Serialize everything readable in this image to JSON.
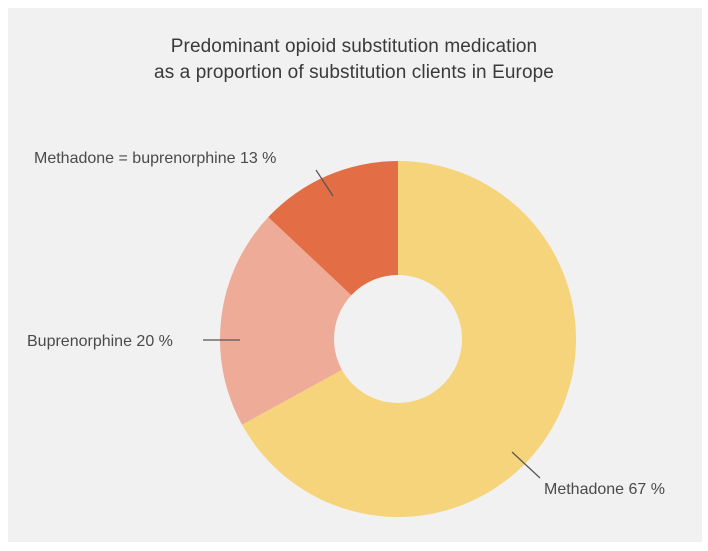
{
  "chart_data": {
    "type": "pie",
    "title": "Predominant opioid substitution medication as a proportion of substitution clients in Europe",
    "title_lines": [
      "Predominant opioid substitution medication",
      "as a proportion of substitution clients in Europe"
    ],
    "slices": [
      {
        "label": "Methadone 67 %",
        "value": 67,
        "color": "#f6d47c"
      },
      {
        "label": "Buprenorphine 20 %",
        "value": 20,
        "color": "#eeab98"
      },
      {
        "label": "Methadone = buprenorphine 13 %",
        "value": 13,
        "color": "#e36d45"
      }
    ],
    "donut": true,
    "legend": "none"
  },
  "colors": {
    "background": "#f1f1f1",
    "hole": "#f1f1f1",
    "leader_line": "#555555"
  }
}
